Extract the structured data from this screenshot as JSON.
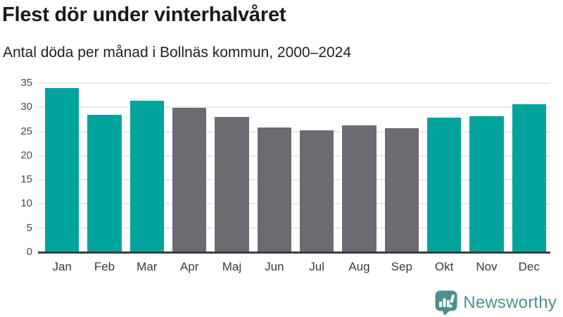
{
  "header": {
    "title": "Flest dör under vinterhalvåret",
    "subtitle": "Antal döda per månad i Bollnäs kommun, 2000–2024"
  },
  "chart_data": {
    "type": "bar",
    "title": "Flest dör under vinterhalvåret",
    "subtitle": "Antal döda per månad i Bollnäs kommun, 2000–2024",
    "categories": [
      "Jan",
      "Feb",
      "Mar",
      "Apr",
      "Maj",
      "Jun",
      "Jul",
      "Aug",
      "Sep",
      "Okt",
      "Nov",
      "Dec"
    ],
    "values": [
      34,
      28.5,
      31.4,
      29.9,
      28,
      25.8,
      25.2,
      26.2,
      25.7,
      27.9,
      28.1,
      30.6
    ],
    "highlight_flags": [
      true,
      true,
      true,
      false,
      false,
      false,
      false,
      false,
      false,
      true,
      true,
      true
    ],
    "highlighted_months": [
      "Jan",
      "Feb",
      "Mar",
      "Okt",
      "Nov",
      "Dec"
    ],
    "xlabel": "",
    "ylabel": "",
    "ylim": [
      0,
      35
    ],
    "yticks": [
      0,
      5,
      10,
      15,
      20,
      25,
      30,
      35
    ],
    "grid": "horizontal",
    "legend": "none",
    "colors": {
      "highlight": "#00a49c",
      "default": "#6e6a72",
      "gridline": "#e9e9ec",
      "axis_line": "#3d3d42"
    }
  },
  "footer": {
    "logo_text": "Newsworthy",
    "logo_color": "#4d908d"
  }
}
